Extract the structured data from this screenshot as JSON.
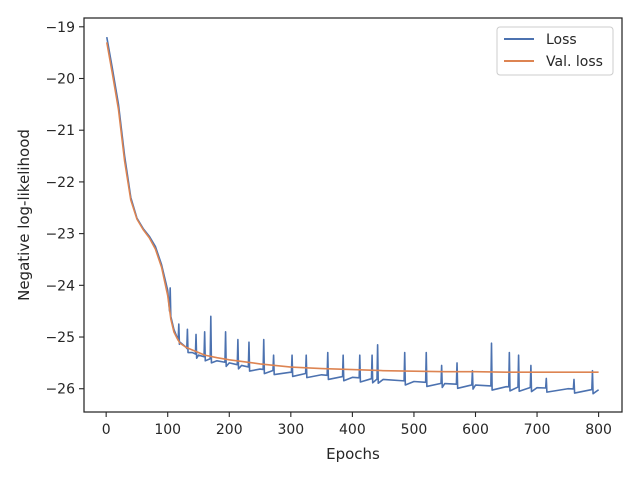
{
  "chart_data": {
    "type": "line",
    "title": "",
    "xlabel": "Epochs",
    "ylabel": "Negative log-likelihood",
    "xlim": [
      -36,
      838
    ],
    "ylim": [
      -26.45,
      -18.83
    ],
    "x_ticks": [
      0,
      100,
      200,
      300,
      400,
      500,
      600,
      700,
      800
    ],
    "y_ticks": [
      -19,
      -20,
      -21,
      -22,
      -23,
      -24,
      -25,
      -26
    ],
    "x_tick_labels": [
      "0",
      "100",
      "200",
      "300",
      "400",
      "500",
      "600",
      "700",
      "800"
    ],
    "y_tick_labels": [
      "−19",
      "−20",
      "−21",
      "−22",
      "−23",
      "−24",
      "−25",
      "−26"
    ],
    "grid": false,
    "legend_position": "top-right",
    "series": [
      {
        "name": "Loss",
        "color": "#4c72b0",
        "x": [
          1,
          10,
          20,
          30,
          40,
          50,
          60,
          70,
          80,
          90,
          100,
          105,
          110,
          115,
          120,
          130,
          140,
          150,
          160,
          170,
          180,
          200,
          220,
          250,
          300,
          350,
          400,
          450,
          500,
          550,
          600,
          650,
          700,
          750,
          800
        ],
        "values": [
          -19.2,
          -19.8,
          -20.5,
          -21.5,
          -22.3,
          -22.7,
          -22.9,
          -23.05,
          -23.25,
          -23.6,
          -24.1,
          -24.6,
          -24.85,
          -25.0,
          -25.1,
          -25.2,
          -25.3,
          -25.35,
          -25.38,
          -25.42,
          -25.46,
          -25.5,
          -25.55,
          -25.62,
          -25.68,
          -25.73,
          -25.78,
          -25.82,
          -25.86,
          -25.9,
          -25.93,
          -25.96,
          -25.98,
          -26.0,
          -26.02
        ],
        "spikes": [
          {
            "x": 104,
            "y": -24.05
          },
          {
            "x": 118,
            "y": -24.75
          },
          {
            "x": 132,
            "y": -24.85
          },
          {
            "x": 146,
            "y": -24.95
          },
          {
            "x": 160,
            "y": -24.9
          },
          {
            "x": 170,
            "y": -24.6
          },
          {
            "x": 194,
            "y": -24.9
          },
          {
            "x": 214,
            "y": -25.05
          },
          {
            "x": 232,
            "y": -25.1
          },
          {
            "x": 256,
            "y": -25.05
          },
          {
            "x": 272,
            "y": -25.35
          },
          {
            "x": 302,
            "y": -25.35
          },
          {
            "x": 325,
            "y": -25.35
          },
          {
            "x": 360,
            "y": -25.3
          },
          {
            "x": 385,
            "y": -25.35
          },
          {
            "x": 412,
            "y": -25.35
          },
          {
            "x": 432,
            "y": -25.35
          },
          {
            "x": 441,
            "y": -25.15
          },
          {
            "x": 485,
            "y": -25.3
          },
          {
            "x": 520,
            "y": -25.3
          },
          {
            "x": 545,
            "y": -25.55
          },
          {
            "x": 570,
            "y": -25.5
          },
          {
            "x": 595,
            "y": -25.65
          },
          {
            "x": 626,
            "y": -25.12
          },
          {
            "x": 655,
            "y": -25.3
          },
          {
            "x": 670,
            "y": -25.35
          },
          {
            "x": 690,
            "y": -25.55
          },
          {
            "x": 715,
            "y": -25.8
          },
          {
            "x": 760,
            "y": -25.82
          },
          {
            "x": 790,
            "y": -25.65
          }
        ]
      },
      {
        "name": "Val. loss",
        "color": "#dd8452",
        "x": [
          1,
          10,
          20,
          30,
          40,
          50,
          60,
          70,
          80,
          90,
          100,
          105,
          110,
          115,
          120,
          130,
          140,
          150,
          160,
          180,
          200,
          250,
          300,
          350,
          400,
          450,
          500,
          550,
          600,
          650,
          700,
          750,
          800
        ],
        "values": [
          -19.3,
          -19.9,
          -20.6,
          -21.6,
          -22.35,
          -22.72,
          -22.92,
          -23.08,
          -23.3,
          -23.65,
          -24.2,
          -24.65,
          -24.9,
          -25.02,
          -25.12,
          -25.2,
          -25.25,
          -25.3,
          -25.35,
          -25.4,
          -25.44,
          -25.52,
          -25.58,
          -25.61,
          -25.63,
          -25.65,
          -25.66,
          -25.67,
          -25.67,
          -25.68,
          -25.68,
          -25.68,
          -25.68
        ]
      }
    ]
  }
}
